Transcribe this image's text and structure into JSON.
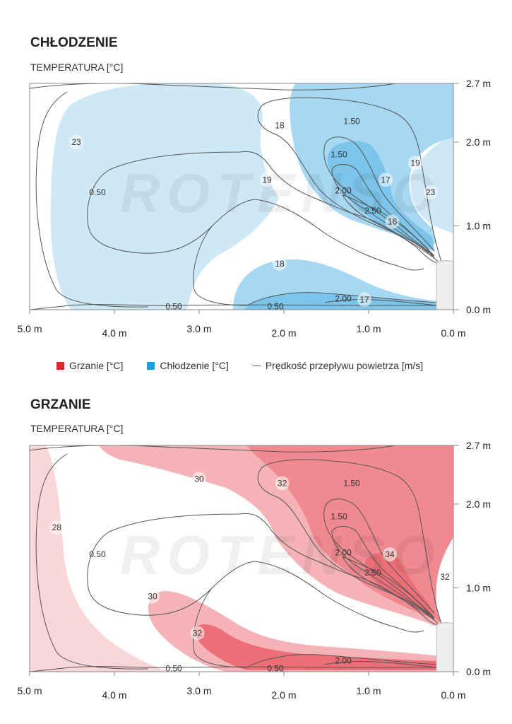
{
  "legend": {
    "heating": "Grzanie [°C]",
    "cooling": "Chłodzenie [°C]",
    "velocity": "Prędkość przepływu powietrza [m/s]"
  },
  "watermark": "ROTENSO",
  "colors": {
    "cool_light": "#cfe8f6",
    "cool_mid": "#a6d8f2",
    "cool_dark": "#7cc4ea",
    "heat_light": "#f9d6d8",
    "heat_mid": "#f5b3b7",
    "heat_dark": "#f08a90",
    "heat_darker": "#ec6f77",
    "contour": "#555555",
    "swatch_heat": "#e0252f",
    "swatch_cool": "#1da1dc"
  },
  "chart_data": [
    {
      "type": "contour",
      "title": "CHŁODZENIE",
      "subtitle": "TEMPERATURA [°C]",
      "x_ticks": [
        "5.0 m",
        "4.0 m",
        "3.0 m",
        "2.0 m",
        "1.0 m",
        "0.0 m"
      ],
      "x_tick_values": [
        5.0,
        4.0,
        3.0,
        2.0,
        1.0,
        0.0
      ],
      "y_ticks": [
        "0.0 m",
        "1.0 m",
        "2.0 m",
        "2.7 m"
      ],
      "y_tick_values": [
        0.0,
        1.0,
        2.0,
        2.7
      ],
      "xlim": [
        5.0,
        0.0
      ],
      "ylim": [
        0.0,
        2.7
      ],
      "temperature_labels": [
        {
          "text": "23",
          "x": 4.45,
          "y": 2.0
        },
        {
          "text": "18",
          "x": 2.05,
          "y": 2.2
        },
        {
          "text": "19",
          "x": 2.2,
          "y": 1.55
        },
        {
          "text": "18",
          "x": 2.05,
          "y": 0.55
        },
        {
          "text": "17",
          "x": 0.8,
          "y": 1.55
        },
        {
          "text": "16",
          "x": 0.72,
          "y": 1.05
        },
        {
          "text": "19",
          "x": 0.45,
          "y": 1.75
        },
        {
          "text": "23",
          "x": 0.27,
          "y": 1.4
        },
        {
          "text": "17",
          "x": 1.05,
          "y": 0.12
        }
      ],
      "velocity_labels": [
        {
          "text": "1.50",
          "x": 1.2,
          "y": 2.25
        },
        {
          "text": "1.50",
          "x": 1.35,
          "y": 1.85
        },
        {
          "text": "2.00",
          "x": 1.3,
          "y": 1.42
        },
        {
          "text": "2.50",
          "x": 0.95,
          "y": 1.18
        },
        {
          "text": "0.50",
          "x": 4.2,
          "y": 1.4
        },
        {
          "text": "0.50",
          "x": 3.3,
          "y": 0.04
        },
        {
          "text": "0.50",
          "x": 2.1,
          "y": 0.04
        },
        {
          "text": "2.00",
          "x": 1.3,
          "y": 0.13
        }
      ]
    },
    {
      "type": "contour",
      "title": "GRZANIE",
      "subtitle": "TEMPERATURA [°C]",
      "x_ticks": [
        "5.0 m",
        "4.0 m",
        "3.0 m",
        "2.0 m",
        "1.0 m",
        "0.0 m"
      ],
      "x_tick_values": [
        5.0,
        4.0,
        3.0,
        2.0,
        1.0,
        0.0
      ],
      "y_ticks": [
        "0.0 m",
        "1.0 m",
        "2.0 m",
        "2.7 m"
      ],
      "y_tick_values": [
        0.0,
        1.0,
        2.0,
        2.7
      ],
      "xlim": [
        5.0,
        0.0
      ],
      "ylim": [
        0.0,
        2.7
      ],
      "temperature_labels": [
        {
          "text": "30",
          "x": 3.0,
          "y": 2.3
        },
        {
          "text": "32",
          "x": 2.02,
          "y": 2.25
        },
        {
          "text": "28",
          "x": 4.68,
          "y": 1.72
        },
        {
          "text": "34",
          "x": 0.75,
          "y": 1.4
        },
        {
          "text": "32",
          "x": 0.1,
          "y": 1.13
        },
        {
          "text": "30",
          "x": 3.55,
          "y": 0.9
        },
        {
          "text": "32",
          "x": 3.02,
          "y": 0.46
        }
      ],
      "velocity_labels": [
        {
          "text": "1.50",
          "x": 1.2,
          "y": 2.25
        },
        {
          "text": "1.50",
          "x": 1.35,
          "y": 1.85
        },
        {
          "text": "2.00",
          "x": 1.3,
          "y": 1.42
        },
        {
          "text": "2.50",
          "x": 0.95,
          "y": 1.18
        },
        {
          "text": "0.50",
          "x": 4.2,
          "y": 1.4
        },
        {
          "text": "0.50",
          "x": 3.3,
          "y": 0.04
        },
        {
          "text": "0.50",
          "x": 2.1,
          "y": 0.04
        },
        {
          "text": "2.00",
          "x": 1.3,
          "y": 0.13
        }
      ]
    }
  ]
}
